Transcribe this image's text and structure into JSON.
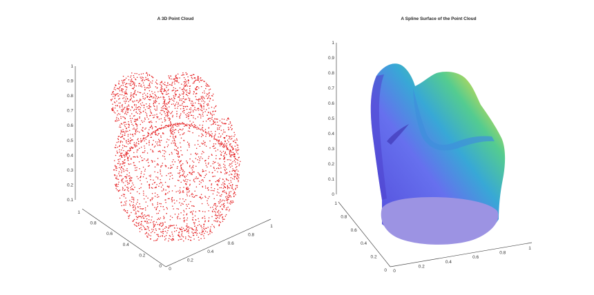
{
  "chart_data": [
    {
      "type": "scatter",
      "title": "A 3D Point Cloud",
      "marker_color": "#e41a1c",
      "zlim": [
        0.1,
        1
      ],
      "xlim": [
        0,
        1
      ],
      "ylim": [
        0,
        1
      ],
      "z_ticks": [
        "0.1",
        "0.2",
        "0.3",
        "0.4",
        "0.5",
        "0.6",
        "0.7",
        "0.8",
        "0.9",
        "1"
      ],
      "x_ticks": [
        "0",
        "0.2",
        "0.4",
        "0.6",
        "0.8",
        "1"
      ],
      "y_ticks": [
        "0",
        "0.2",
        "0.4",
        "0.6",
        "0.8",
        "1"
      ]
    },
    {
      "type": "surface",
      "title": "A Spline Surface of the Point Cloud",
      "colormap": [
        "#4b3fd6",
        "#6a6ff0",
        "#3aa6d8",
        "#3fc8a0",
        "#a8dc5a",
        "#f2dd3a"
      ],
      "zlim": [
        0,
        1
      ],
      "xlim": [
        0,
        1
      ],
      "ylim": [
        0,
        1
      ],
      "z_ticks": [
        "0",
        "0.1",
        "0.2",
        "0.3",
        "0.4",
        "0.5",
        "0.6",
        "0.7",
        "0.8",
        "0.9",
        "1"
      ],
      "x_ticks": [
        "0",
        "0.2",
        "0.4",
        "0.6",
        "0.8",
        "1"
      ],
      "y_ticks": [
        "0",
        "0.2",
        "0.4",
        "0.6",
        "0.8",
        "1"
      ]
    }
  ]
}
